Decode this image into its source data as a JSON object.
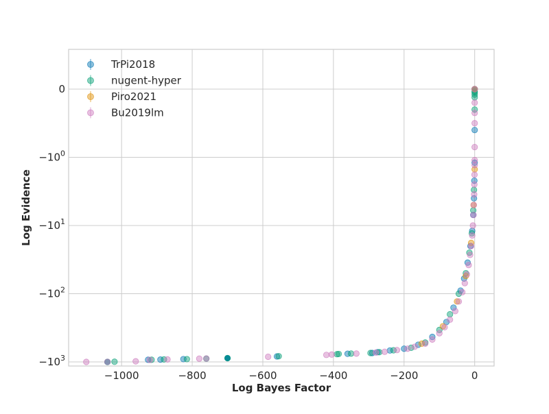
{
  "chart_data": {
    "type": "scatter",
    "xlabel": "Log Bayes Factor",
    "ylabel": "Log Evidence",
    "xscale": "linear",
    "yscale": "symlog",
    "xlim": [
      -1150,
      55
    ],
    "ylim": [
      -1000,
      0
    ],
    "xticks": [
      {
        "value": -1000,
        "label": "−1000"
      },
      {
        "value": -800,
        "label": "−800"
      },
      {
        "value": -600,
        "label": "−600"
      },
      {
        "value": -400,
        "label": "−400"
      },
      {
        "value": -200,
        "label": "−200"
      },
      {
        "value": 0,
        "label": "0"
      }
    ],
    "yticks": [
      {
        "value": 0,
        "label": "0",
        "sup": ""
      },
      {
        "value": -1,
        "label": "−10",
        "sup": "0"
      },
      {
        "value": -10,
        "label": "−10",
        "sup": "1"
      },
      {
        "value": -100,
        "label": "−10",
        "sup": "2"
      },
      {
        "value": -1000,
        "label": "−10",
        "sup": "3"
      }
    ],
    "grid": true,
    "legend_position": "top-left",
    "series": [
      {
        "name": "TrPi2018",
        "color": "#0173b2",
        "points": [
          [
            -1040,
            -1000
          ],
          [
            -925,
            -930
          ],
          [
            -890,
            -925
          ],
          [
            -825,
            -910
          ],
          [
            -700,
            -880
          ],
          [
            -560,
            -830
          ],
          [
            -360,
            -760
          ],
          [
            -290,
            -740
          ],
          [
            -275,
            -720
          ],
          [
            -240,
            -680
          ],
          [
            -200,
            -640
          ],
          [
            -160,
            -560
          ],
          [
            -120,
            -430
          ],
          [
            -80,
            -260
          ],
          [
            -60,
            -160
          ],
          [
            -40,
            -90
          ],
          [
            -30,
            -60
          ],
          [
            -20,
            -35
          ],
          [
            -12,
            -20
          ],
          [
            -7,
            -12
          ],
          [
            -4,
            -7
          ],
          [
            -2,
            -4
          ],
          [
            -1,
            -2.2
          ],
          [
            0,
            -1.2
          ],
          [
            0,
            -0.6
          ],
          [
            0,
            0
          ]
        ]
      },
      {
        "name": "nugent-hyper",
        "color": "#029e73",
        "points": [
          [
            -1040,
            -1000
          ],
          [
            -1020,
            -995
          ],
          [
            -915,
            -930
          ],
          [
            -880,
            -920
          ],
          [
            -815,
            -910
          ],
          [
            -760,
            -895
          ],
          [
            -700,
            -880
          ],
          [
            -555,
            -825
          ],
          [
            -390,
            -770
          ],
          [
            -385,
            -765
          ],
          [
            -350,
            -755
          ],
          [
            -295,
            -740
          ],
          [
            -270,
            -720
          ],
          [
            -230,
            -675
          ],
          [
            -180,
            -620
          ],
          [
            -140,
            -520
          ],
          [
            -100,
            -340
          ],
          [
            -70,
            -200
          ],
          [
            -45,
            -100
          ],
          [
            -25,
            -50
          ],
          [
            -15,
            -25
          ],
          [
            -8,
            -13
          ],
          [
            -4,
            -6
          ],
          [
            -2,
            -3
          ],
          [
            0,
            -0.3
          ],
          [
            0,
            -0.12
          ],
          [
            0,
            -0.08
          ],
          [
            0,
            -0.05
          ],
          [
            0,
            -0.03
          ],
          [
            0,
            0
          ]
        ]
      },
      {
        "name": "Piro2021",
        "color": "#de8f05",
        "points": [
          [
            -150,
            -540
          ],
          [
            -90,
            -300
          ],
          [
            -50,
            -130
          ],
          [
            -25,
            -55
          ],
          [
            -10,
            -18
          ],
          [
            -3,
            -5
          ],
          [
            0,
            -1.5
          ],
          [
            0,
            0
          ]
        ]
      },
      {
        "name": "Bu2019lm",
        "color": "#cc78bc",
        "points": [
          [
            -1100,
            -1000
          ],
          [
            -1040,
            -998
          ],
          [
            -960,
            -980
          ],
          [
            -920,
            -935
          ],
          [
            -870,
            -920
          ],
          [
            -780,
            -895
          ],
          [
            -760,
            -890
          ],
          [
            -585,
            -840
          ],
          [
            -420,
            -790
          ],
          [
            -405,
            -780
          ],
          [
            -335,
            -755
          ],
          [
            -280,
            -730
          ],
          [
            -255,
            -710
          ],
          [
            -220,
            -670
          ],
          [
            -190,
            -640
          ],
          [
            -170,
            -600
          ],
          [
            -140,
            -540
          ],
          [
            -120,
            -470
          ],
          [
            -100,
            -380
          ],
          [
            -85,
            -310
          ],
          [
            -70,
            -240
          ],
          [
            -55,
            -180
          ],
          [
            -45,
            -130
          ],
          [
            -35,
            -95
          ],
          [
            -28,
            -70
          ],
          [
            -22,
            -52
          ],
          [
            -17,
            -38
          ],
          [
            -13,
            -27
          ],
          [
            -10,
            -20
          ],
          [
            -7,
            -14
          ],
          [
            -5,
            -10
          ],
          [
            -3.5,
            -7
          ],
          [
            -2.5,
            -5
          ],
          [
            -1.5,
            -3.5
          ],
          [
            -1,
            -2.5
          ],
          [
            -0.5,
            -1.8
          ],
          [
            0,
            -1.3
          ],
          [
            0,
            -1.1
          ],
          [
            0,
            -0.85
          ],
          [
            0,
            -0.5
          ],
          [
            0,
            -0.35
          ],
          [
            0,
            -0.2
          ],
          [
            0,
            0
          ]
        ]
      }
    ]
  }
}
